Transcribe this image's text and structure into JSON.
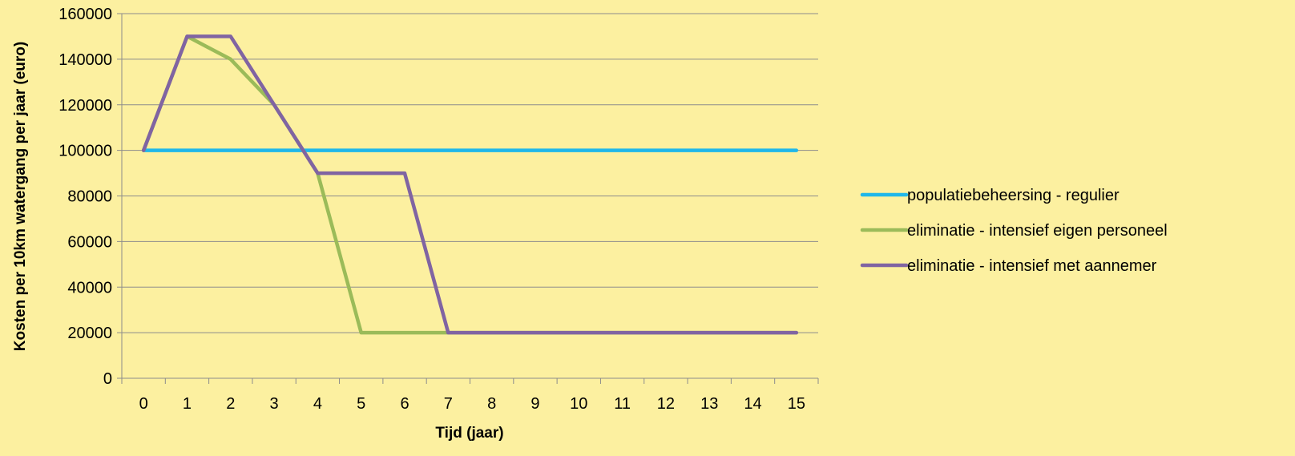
{
  "colors": {
    "background": "#FCF0A0",
    "gridline": "#8C8C8C",
    "axis": "#8C8C8C"
  },
  "chart_data": {
    "type": "line",
    "title": "",
    "xlabel": "Tijd (jaar)",
    "ylabel": "Kosten per 10km watergang per jaar (euro)",
    "x": [
      0,
      1,
      2,
      3,
      4,
      5,
      6,
      7,
      8,
      9,
      10,
      11,
      12,
      13,
      14,
      15
    ],
    "x_tick_labels": [
      "0",
      "1",
      "2",
      "3",
      "4",
      "5",
      "6",
      "7",
      "8",
      "9",
      "10",
      "11",
      "12",
      "13",
      "14",
      "15"
    ],
    "ylim": [
      0,
      160000
    ],
    "y_ticks": [
      0,
      20000,
      40000,
      60000,
      80000,
      100000,
      120000,
      140000,
      160000
    ],
    "y_tick_labels": [
      "0",
      "20000",
      "40000",
      "60000",
      "80000",
      "100000",
      "120000",
      "140000",
      "160000"
    ],
    "grid": "horizontal",
    "legend_position": "right",
    "series": [
      {
        "name": "populatiebeheersing - regulier",
        "color": "#1FB7EA",
        "values": [
          100000,
          100000,
          100000,
          100000,
          100000,
          100000,
          100000,
          100000,
          100000,
          100000,
          100000,
          100000,
          100000,
          100000,
          100000,
          100000
        ]
      },
      {
        "name": "eliminatie - intensief eigen personeel",
        "color": "#9BBB59",
        "values": [
          100000,
          150000,
          140000,
          120000,
          90000,
          20000,
          20000,
          20000,
          20000,
          20000,
          20000,
          20000,
          20000,
          20000,
          20000,
          20000
        ]
      },
      {
        "name": "eliminatie - intensief met aannemer",
        "color": "#8064A2",
        "values": [
          100000,
          150000,
          150000,
          120000,
          90000,
          90000,
          90000,
          20000,
          20000,
          20000,
          20000,
          20000,
          20000,
          20000,
          20000,
          20000
        ]
      }
    ]
  }
}
